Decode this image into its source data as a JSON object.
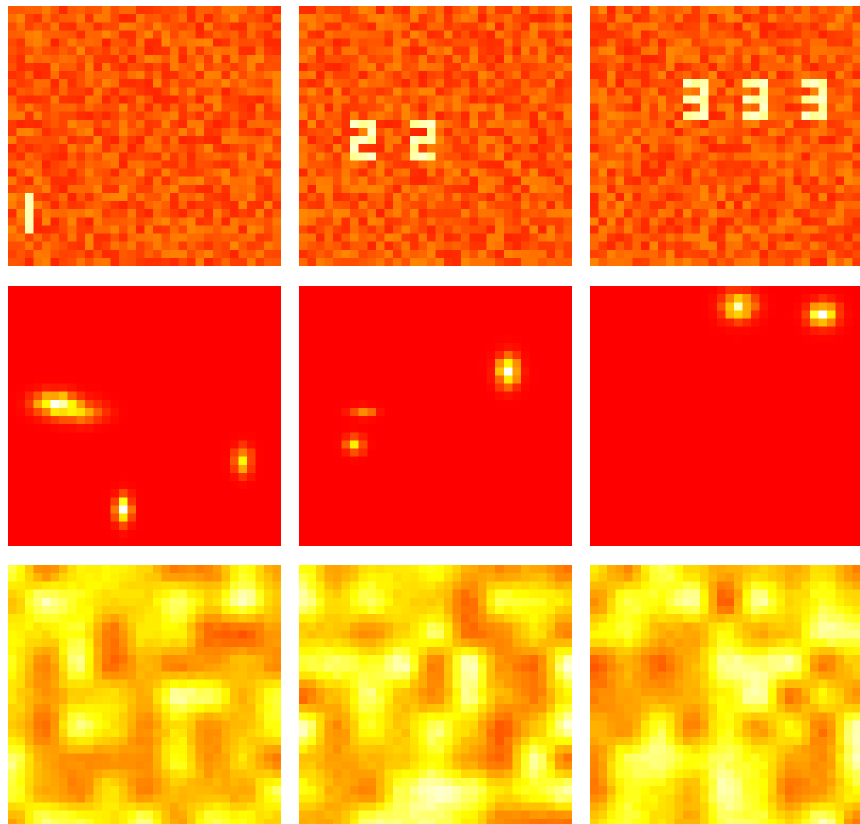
{
  "grid": {
    "rows": 3,
    "cols": 3,
    "background": "#ffffff"
  },
  "colormap": "hot",
  "palette": {
    "red": "#ff0000",
    "orange": "#ff6a00",
    "yellow": "#ffff00",
    "white": "#ffffff"
  },
  "rows": [
    {
      "name": "row-digit-noise",
      "description_kind": "noise-with-digits",
      "panels": [
        {
          "name": "panel-digit-1",
          "digit_label": "1",
          "digit_count": 1
        },
        {
          "name": "panel-digit-2",
          "digit_label": "2",
          "digit_count": 2
        },
        {
          "name": "panel-digit-3",
          "digit_label": "3",
          "digit_count": 3
        }
      ]
    },
    {
      "name": "row-sparse-blobs",
      "description_kind": "sparse-blobs",
      "panels": [
        {
          "name": "panel-blobs-1"
        },
        {
          "name": "panel-blobs-2"
        },
        {
          "name": "panel-blobs-3"
        }
      ]
    },
    {
      "name": "row-smooth-field",
      "description_kind": "smooth-field",
      "panels": [
        {
          "name": "panel-field-1"
        },
        {
          "name": "panel-field-2"
        },
        {
          "name": "panel-field-3"
        }
      ]
    }
  ]
}
